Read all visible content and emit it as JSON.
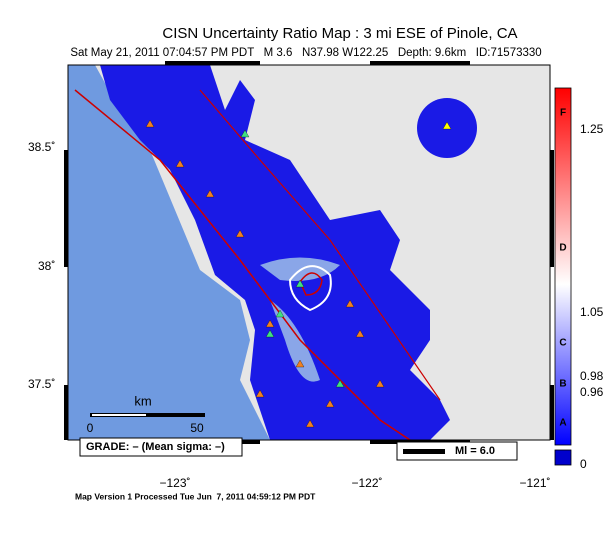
{
  "header": {
    "title": "CISN Uncertainty Ratio Map : 3 mi ESE of Pinole, CA",
    "subtitle": "Sat May 21, 2011 07:04:57 PM PDT   M 3.6   N37.98 W122.25   Depth: 9.6km   ID:71573330"
  },
  "latitude_labels": [
    "38.5˚",
    "38˚",
    "37.5˚"
  ],
  "longitude_labels": [
    "−123˚",
    "−122˚",
    "−121˚"
  ],
  "scale_bar": {
    "unit": "km",
    "start": "0",
    "end": "50"
  },
  "grade_box": "GRADE: – (Mean sigma: –)",
  "magnitude_legend": "Ml = 6.0",
  "colorbar": {
    "labels": [
      "1.25",
      "1.05",
      "0.98",
      "0.96",
      "0"
    ],
    "grades": [
      "F",
      "D",
      "C",
      "B",
      "A"
    ]
  },
  "footer": "Map Version 1 Processed Tue Jun  7, 2011 04:59:12 PM PDT"
}
